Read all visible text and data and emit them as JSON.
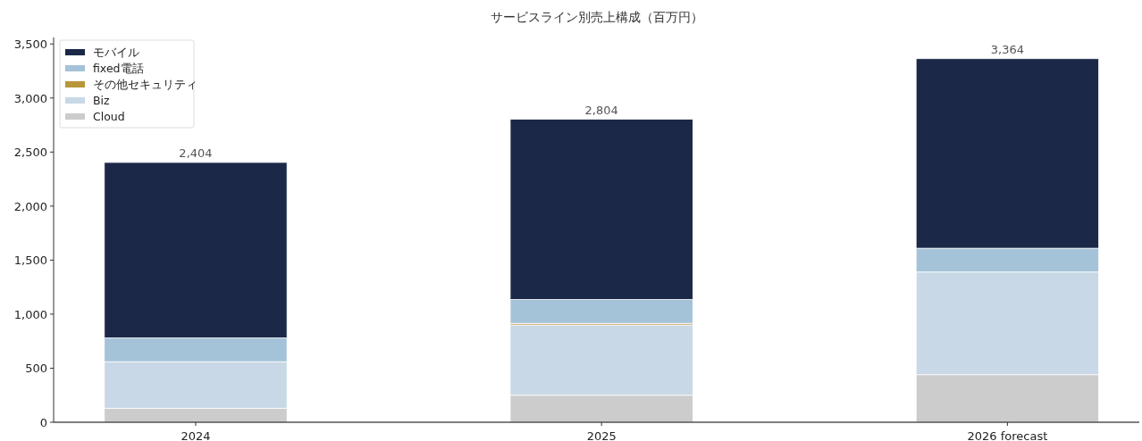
{
  "chart_data": {
    "type": "bar",
    "title": "サービスライン別売上構成（百万円）",
    "categories": [
      "2024",
      "2025",
      "2026 forecast"
    ],
    "stacked": true,
    "series": [
      {
        "name": "Cloud",
        "color": "#cccccc",
        "values": [
          130,
          250,
          440
        ]
      },
      {
        "name": "Biz",
        "color": "#c8d8e6",
        "values": [
          430,
          650,
          950
        ]
      },
      {
        "name": "その他セキュリティ",
        "color": "#b8963a",
        "values": [
          0,
          15,
          0
        ]
      },
      {
        "name": "fixed電話",
        "color": "#a5c3d8",
        "values": [
          220,
          220,
          220
        ]
      },
      {
        "name": "モバイル",
        "color": "#1b2848",
        "values": [
          1624,
          1669,
          1754
        ]
      }
    ],
    "totals": [
      "2,404",
      "2,804",
      "3,364"
    ],
    "ylim": [
      0,
      3560
    ],
    "yticks": [
      {
        "value": 0,
        "label": "0"
      },
      {
        "value": 500,
        "label": "500"
      },
      {
        "value": 1000,
        "label": "1,000"
      },
      {
        "value": 1500,
        "label": "1,500"
      },
      {
        "value": 2000,
        "label": "2,000"
      },
      {
        "value": 2500,
        "label": "2,500"
      },
      {
        "value": 3000,
        "label": "3,000"
      },
      {
        "value": 3500,
        "label": "3,500"
      }
    ],
    "legend": "top left",
    "grid": false
  }
}
